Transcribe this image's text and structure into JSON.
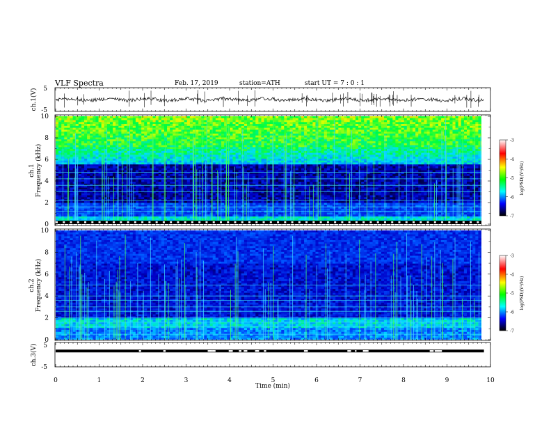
{
  "header": {
    "title": "VLF  Spectra",
    "date": "Feb. 17, 2019",
    "station": "station=ATH",
    "start_ut": "start  UT  =   7  : 0   : 1"
  },
  "chart_data": [
    {
      "type": "line",
      "panel": "ch1-waveform",
      "ylabel": "ch.1(V)",
      "ylim": [
        -5,
        5
      ],
      "yticks": [
        "5",
        "-5"
      ],
      "xlim": [
        0,
        10
      ],
      "description_series": "noisy waveform centred near 0 V with spikes",
      "x_end": 9.85
    },
    {
      "type": "heatmap",
      "panel": "ch1-spectrogram",
      "ylabel_line1": "ch.1",
      "ylabel_line2": "Frequency (kHz)",
      "ylim": [
        0,
        10
      ],
      "yticks": [
        "0",
        "2",
        "4",
        "6",
        "8",
        "10"
      ],
      "xlim": [
        0,
        10
      ],
      "x_end": 9.85,
      "colorbar": {
        "label": "log(PSD)(V²/Hz)",
        "range": [
          -7,
          -3
        ],
        "ticks": [
          "-3",
          "-4",
          "-5",
          "-6",
          "-7"
        ]
      }
    },
    {
      "type": "heatmap",
      "panel": "ch2-spectrogram",
      "ylabel_line1": "ch.2",
      "ylabel_line2": "Frequency (kHz)",
      "ylim": [
        0,
        10
      ],
      "yticks": [
        "0",
        "2",
        "4",
        "6",
        "8",
        "10"
      ],
      "xlim": [
        0,
        10
      ],
      "x_end": 9.85,
      "colorbar": {
        "label": "log(PSD)(V²/Hz)",
        "range": [
          -7,
          -3
        ],
        "ticks": [
          "-3",
          "-4",
          "-5",
          "-6",
          "-7"
        ]
      }
    },
    {
      "type": "line",
      "panel": "ch3-waveform",
      "ylabel": "ch.3(V)",
      "ylim": [
        -5,
        5
      ],
      "yticks": [
        "5",
        "-5"
      ],
      "xlim": [
        0,
        10
      ],
      "x_end": 9.85,
      "xlabel": "Time  (min)",
      "xticks": [
        "0",
        "1",
        "2",
        "3",
        "4",
        "5",
        "6",
        "7",
        "8",
        "9",
        "10"
      ]
    }
  ],
  "colors": {
    "ink": "#000000",
    "colormap": [
      "#ffffff",
      "#ff0000",
      "#ffff00",
      "#00ff00",
      "#00ffff",
      "#0000ff",
      "#000000"
    ]
  }
}
